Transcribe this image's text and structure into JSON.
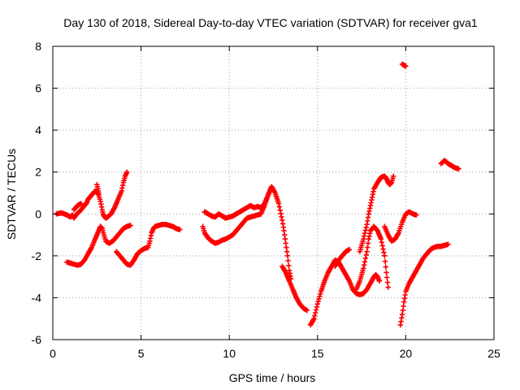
{
  "chart_data": {
    "type": "scatter",
    "title": "Day 130 of 2018, Sidereal Day-to-day VTEC variation (SDTVAR) for receiver gva1",
    "xlabel": "GPS time / hours",
    "ylabel": "SDTVAR / TECUs",
    "xlim": [
      0,
      25
    ],
    "ylim": [
      -6,
      8
    ],
    "xticks": [
      0,
      5,
      10,
      15,
      20,
      25
    ],
    "yticks": [
      -6,
      -4,
      -2,
      0,
      2,
      4,
      6,
      8
    ],
    "grid": true,
    "marker": "plus",
    "color": "#ff0000",
    "series": [
      {
        "segments": [
          [
            [
              0.2,
              0.0
            ],
            [
              0.5,
              0.05
            ],
            [
              0.8,
              -0.05
            ],
            [
              1.0,
              -0.15
            ],
            [
              1.1,
              -0.05
            ],
            [
              1.2,
              -0.2
            ],
            [
              1.3,
              -0.05
            ],
            [
              1.5,
              0.1
            ],
            [
              1.7,
              0.3
            ],
            [
              1.9,
              0.5
            ],
            [
              2.0,
              0.7
            ],
            [
              2.2,
              0.9
            ],
            [
              2.3,
              1.0
            ],
            [
              2.4,
              1.1
            ],
            [
              2.5,
              1.05
            ],
            [
              2.6,
              0.9
            ],
            [
              2.7,
              0.6
            ],
            [
              2.8,
              0.2
            ],
            [
              2.85,
              0.0
            ],
            [
              2.9,
              -0.1
            ],
            [
              3.0,
              -0.2
            ],
            [
              3.1,
              -0.15
            ],
            [
              3.3,
              0.0
            ],
            [
              3.5,
              0.3
            ],
            [
              3.7,
              0.7
            ],
            [
              3.9,
              1.1
            ],
            [
              4.0,
              1.5
            ],
            [
              4.1,
              1.8
            ],
            [
              4.2,
              2.0
            ]
          ],
          [
            [
              1.2,
              0.2
            ],
            [
              1.4,
              0.4
            ],
            [
              1.6,
              0.5
            ]
          ],
          [
            [
              2.5,
              1.4
            ],
            [
              2.55,
              1.2
            ],
            [
              2.6,
              1.0
            ]
          ],
          [
            [
              0.8,
              -2.3
            ],
            [
              1.0,
              -2.35
            ],
            [
              1.2,
              -2.4
            ],
            [
              1.4,
              -2.45
            ],
            [
              1.6,
              -2.4
            ],
            [
              1.8,
              -2.2
            ],
            [
              2.0,
              -1.9
            ],
            [
              2.2,
              -1.6
            ],
            [
              2.4,
              -1.2
            ],
            [
              2.5,
              -1.0
            ],
            [
              2.6,
              -0.8
            ],
            [
              2.7,
              -0.6
            ],
            [
              2.8,
              -0.7
            ],
            [
              2.9,
              -1.0
            ],
            [
              3.0,
              -1.3
            ],
            [
              3.2,
              -1.4
            ],
            [
              3.4,
              -1.3
            ],
            [
              3.6,
              -1.1
            ],
            [
              3.8,
              -0.9
            ],
            [
              4.0,
              -0.7
            ],
            [
              4.2,
              -0.6
            ],
            [
              4.4,
              -0.55
            ]
          ],
          [
            [
              3.6,
              -1.8
            ],
            [
              3.8,
              -2.0
            ],
            [
              4.0,
              -2.2
            ],
            [
              4.2,
              -2.4
            ],
            [
              4.4,
              -2.45
            ],
            [
              4.6,
              -2.2
            ],
            [
              4.8,
              -1.9
            ],
            [
              5.0,
              -1.75
            ],
            [
              5.2,
              -1.65
            ],
            [
              5.4,
              -1.6
            ],
            [
              5.5,
              -1.3
            ],
            [
              5.6,
              -0.9
            ],
            [
              5.7,
              -0.7
            ],
            [
              5.8,
              -0.6
            ],
            [
              6.0,
              -0.55
            ],
            [
              6.2,
              -0.5
            ],
            [
              6.4,
              -0.5
            ],
            [
              6.6,
              -0.55
            ],
            [
              6.8,
              -0.6
            ],
            [
              7.0,
              -0.7
            ],
            [
              7.2,
              -0.75
            ]
          ],
          [
            [
              8.5,
              -0.6
            ],
            [
              8.6,
              -0.9
            ],
            [
              8.8,
              -1.15
            ],
            [
              9.0,
              -1.3
            ],
            [
              9.2,
              -1.4
            ],
            [
              9.4,
              -1.35
            ],
            [
              9.6,
              -1.25
            ],
            [
              9.8,
              -1.2
            ],
            [
              10.0,
              -1.1
            ],
            [
              10.2,
              -1.0
            ],
            [
              10.4,
              -0.8
            ],
            [
              10.6,
              -0.6
            ],
            [
              10.8,
              -0.4
            ],
            [
              11.0,
              -0.2
            ],
            [
              11.2,
              -0.15
            ],
            [
              11.4,
              -0.1
            ],
            [
              11.6,
              -0.05
            ],
            [
              11.8,
              0.0
            ],
            [
              12.0,
              0.4
            ],
            [
              12.2,
              0.9
            ],
            [
              12.4,
              1.3
            ],
            [
              12.6,
              1.0
            ],
            [
              12.8,
              0.5
            ],
            [
              13.0,
              -0.3
            ],
            [
              13.1,
              -0.8
            ],
            [
              13.2,
              -1.4
            ],
            [
              13.3,
              -2.0
            ],
            [
              13.4,
              -2.7
            ],
            [
              13.5,
              -3.1
            ]
          ],
          [
            [
              8.6,
              0.1
            ],
            [
              8.8,
              0.0
            ],
            [
              9.0,
              -0.1
            ],
            [
              9.2,
              -0.15
            ],
            [
              9.4,
              0.0
            ],
            [
              9.6,
              -0.1
            ],
            [
              9.8,
              -0.2
            ],
            [
              10.0,
              -0.15
            ],
            [
              10.2,
              -0.1
            ],
            [
              10.4,
              0.0
            ],
            [
              10.6,
              0.1
            ],
            [
              10.8,
              0.2
            ],
            [
              11.0,
              0.3
            ],
            [
              11.2,
              0.4
            ],
            [
              11.4,
              0.3
            ],
            [
              11.6,
              0.35
            ],
            [
              11.8,
              0.3
            ],
            [
              12.0,
              0.5
            ],
            [
              12.2,
              0.9
            ],
            [
              12.4,
              1.3
            ]
          ],
          [
            [
              13.0,
              -2.5
            ],
            [
              13.2,
              -2.8
            ],
            [
              13.4,
              -3.2
            ],
            [
              13.6,
              -3.6
            ],
            [
              13.8,
              -4.0
            ],
            [
              14.0,
              -4.3
            ],
            [
              14.2,
              -4.5
            ],
            [
              14.4,
              -4.6
            ]
          ],
          [
            [
              14.6,
              -5.3
            ],
            [
              14.8,
              -5.0
            ],
            [
              15.0,
              -4.3
            ],
            [
              15.2,
              -3.7
            ],
            [
              15.4,
              -3.2
            ],
            [
              15.6,
              -2.8
            ],
            [
              15.8,
              -2.5
            ],
            [
              16.0,
              -2.2
            ],
            [
              16.2,
              -2.3
            ],
            [
              16.4,
              -2.6
            ],
            [
              16.6,
              -2.9
            ],
            [
              16.8,
              -3.2
            ],
            [
              17.0,
              -3.6
            ],
            [
              17.2,
              -3.8
            ],
            [
              17.4,
              -3.85
            ],
            [
              17.6,
              -3.8
            ],
            [
              17.8,
              -3.6
            ],
            [
              18.0,
              -3.3
            ],
            [
              18.2,
              -3.0
            ],
            [
              18.3,
              -2.9
            ],
            [
              18.4,
              -3.0
            ],
            [
              18.5,
              -3.2
            ]
          ],
          [
            [
              16.0,
              -2.5
            ],
            [
              16.2,
              -2.2
            ],
            [
              16.4,
              -2.0
            ],
            [
              16.6,
              -1.8
            ],
            [
              16.8,
              -1.7
            ]
          ],
          [
            [
              17.4,
              -1.8
            ],
            [
              17.6,
              -1.2
            ],
            [
              17.8,
              -0.5
            ],
            [
              17.9,
              0.0
            ],
            [
              18.0,
              0.4
            ],
            [
              18.1,
              0.8
            ],
            [
              18.2,
              1.2
            ],
            [
              18.4,
              1.5
            ],
            [
              18.6,
              1.75
            ],
            [
              18.8,
              1.8
            ],
            [
              18.9,
              1.7
            ],
            [
              19.0,
              1.5
            ],
            [
              19.1,
              1.4
            ],
            [
              19.2,
              1.5
            ],
            [
              19.3,
              1.8
            ]
          ],
          [
            [
              17.2,
              -3.6
            ],
            [
              17.4,
              -3.2
            ],
            [
              17.6,
              -2.6
            ],
            [
              17.8,
              -1.8
            ],
            [
              17.9,
              -1.2
            ],
            [
              18.0,
              -0.8
            ],
            [
              18.2,
              -0.6
            ],
            [
              18.4,
              -0.8
            ],
            [
              18.6,
              -1.2
            ],
            [
              18.8,
              -2.0
            ],
            [
              18.9,
              -2.8
            ],
            [
              19.0,
              -3.5
            ]
          ],
          [
            [
              18.8,
              -0.6
            ],
            [
              19.0,
              -1.0
            ],
            [
              19.2,
              -1.3
            ],
            [
              19.4,
              -1.2
            ],
            [
              19.6,
              -0.9
            ],
            [
              19.8,
              -0.4
            ],
            [
              20.0,
              0.0
            ],
            [
              20.2,
              0.1
            ],
            [
              20.4,
              0.0
            ],
            [
              20.6,
              -0.05
            ]
          ],
          [
            [
              19.7,
              -5.3
            ],
            [
              19.8,
              -4.8
            ],
            [
              19.9,
              -4.2
            ],
            [
              20.0,
              -3.7
            ],
            [
              20.2,
              -3.3
            ],
            [
              20.4,
              -3.0
            ],
            [
              20.6,
              -2.7
            ],
            [
              20.8,
              -2.4
            ],
            [
              21.0,
              -2.1
            ],
            [
              21.2,
              -1.9
            ],
            [
              21.4,
              -1.7
            ],
            [
              21.6,
              -1.6
            ],
            [
              21.8,
              -1.55
            ],
            [
              22.0,
              -1.55
            ],
            [
              22.2,
              -1.5
            ],
            [
              22.4,
              -1.45
            ]
          ],
          [
            [
              22.0,
              2.4
            ],
            [
              22.2,
              2.55
            ],
            [
              22.4,
              2.4
            ],
            [
              22.6,
              2.3
            ],
            [
              22.8,
              2.2
            ],
            [
              23.0,
              2.15
            ]
          ],
          [
            [
              19.8,
              7.15
            ],
            [
              19.9,
              7.1
            ],
            [
              20.0,
              7.05
            ]
          ]
        ]
      }
    ]
  }
}
